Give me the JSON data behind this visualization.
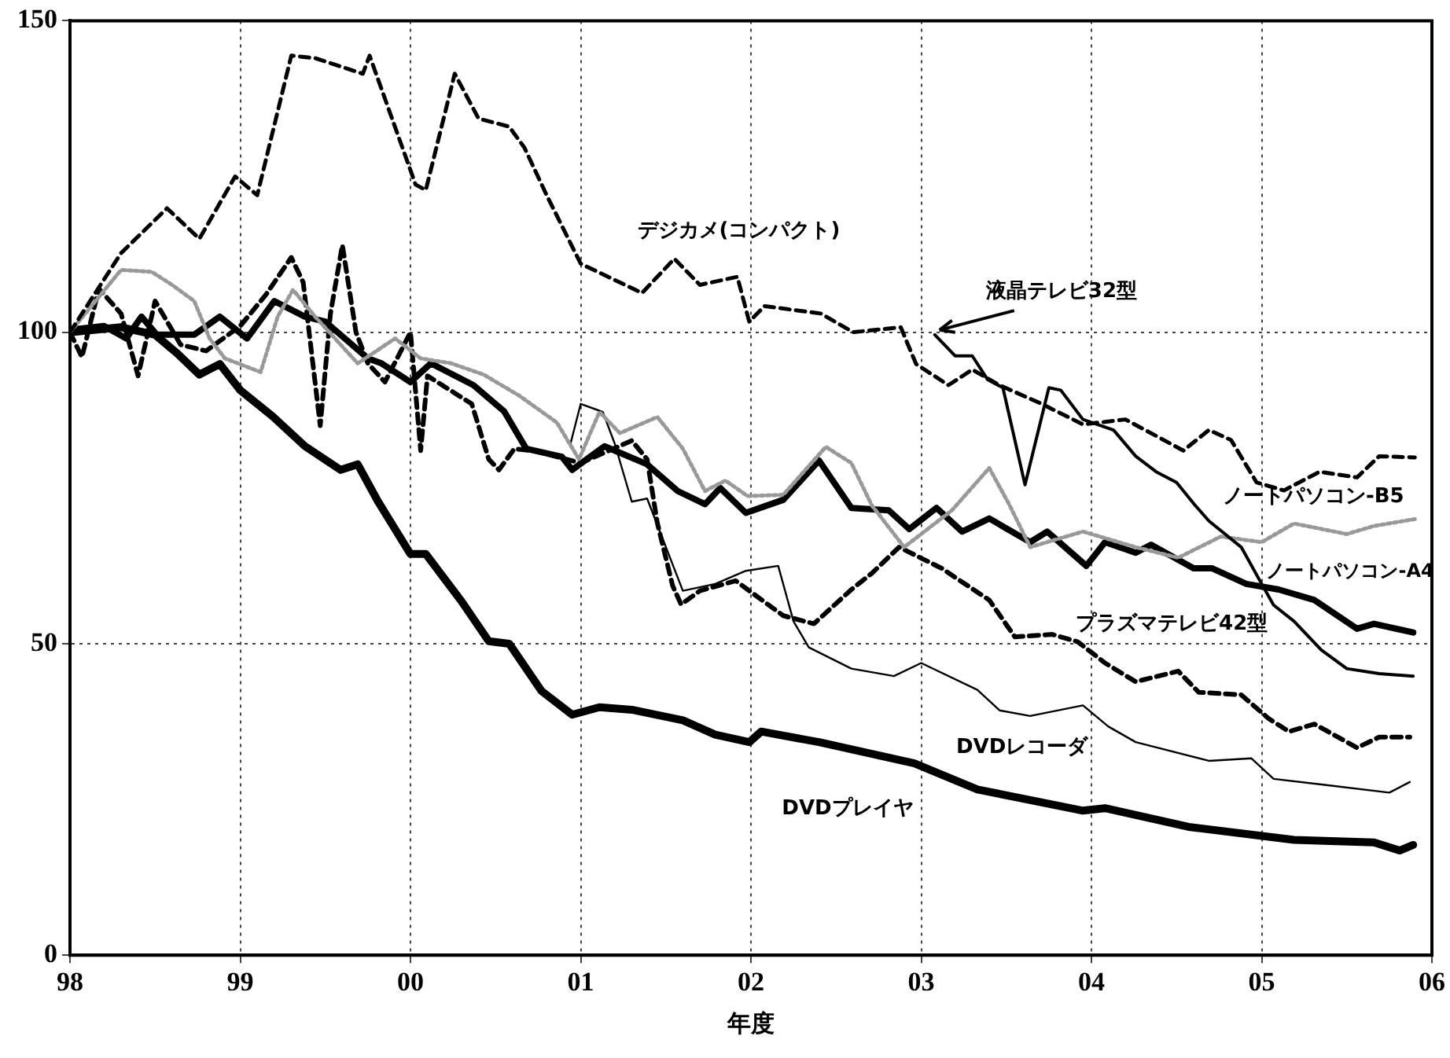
{
  "chart_data": {
    "type": "line",
    "xlabel": "年度",
    "xlim": [
      1998,
      2006
    ],
    "xticks": [
      {
        "value": 1998,
        "label": "98"
      },
      {
        "value": 1999,
        "label": "99"
      },
      {
        "value": 2000,
        "label": "00"
      },
      {
        "value": 2001,
        "label": "01"
      },
      {
        "value": 2002,
        "label": "02"
      },
      {
        "value": 2003,
        "label": "03"
      },
      {
        "value": 2004,
        "label": "04"
      },
      {
        "value": 2005,
        "label": "05"
      },
      {
        "value": 2006,
        "label": "06"
      }
    ],
    "ylim": [
      0,
      150
    ],
    "yticks": [
      0,
      50,
      100,
      150
    ],
    "grid": true,
    "marker": "none",
    "series": [
      {
        "name": "デジカメ(コンパクト)",
        "color": "#000000",
        "line_style": "dashed",
        "x": [
          1998.0,
          1998.3,
          1998.57,
          1998.76,
          1998.97,
          1999.1,
          1999.3,
          1999.44,
          1999.72,
          1999.76,
          2000.03,
          2000.09,
          2000.26,
          2000.4,
          2000.58,
          2000.67,
          2000.8,
          2001.0,
          2001.36,
          2001.55,
          2001.7,
          2001.92,
          2001.99,
          2002.08,
          2002.41,
          2002.6,
          2002.88,
          2002.97,
          2003.16,
          2003.3,
          2003.46,
          2003.7,
          2003.95,
          2004.2,
          2004.54,
          2004.69,
          2004.82,
          2004.97,
          2005.13,
          2005.34,
          2005.56,
          2005.69,
          2005.9
        ],
        "values": [
          100,
          112.7,
          119.9,
          115,
          125,
          122,
          144.4,
          144,
          141.5,
          144.4,
          123.7,
          122.8,
          141.5,
          134.3,
          133,
          129.6,
          122,
          111,
          106.3,
          111.8,
          107.6,
          108.9,
          101.7,
          104.2,
          103,
          100,
          100.8,
          94.9,
          91.5,
          94,
          91.5,
          88.6,
          85.2,
          86,
          81,
          84.3,
          82.7,
          75.9,
          74.6,
          77.6,
          76.7,
          80.1,
          79.9
        ]
      },
      {
        "name": "液晶テレビ32型",
        "color": "#000000",
        "line_style": "solid",
        "x": [
          2003.08,
          2003.2,
          2003.3,
          2003.39,
          2003.48,
          2003.61,
          2003.75,
          2003.82,
          2003.95,
          2004.13,
          2004.26,
          2004.38,
          2004.5,
          2004.6,
          2004.69,
          2004.88,
          2005.0,
          2005.07,
          2005.19,
          2005.35,
          2005.5,
          2005.69,
          2005.89
        ],
        "values": [
          99.6,
          96.2,
          96.2,
          92.4,
          91.1,
          75.5,
          91.1,
          90.7,
          86,
          84.3,
          80.1,
          77.6,
          75.9,
          72.5,
          69.7,
          65.5,
          59.6,
          56.2,
          53.6,
          49,
          46,
          45.2,
          44.8
        ]
      },
      {
        "name": "ノートパソコン-B5",
        "color": "#999999",
        "line_style": "dotted",
        "x": [
          1998.0,
          1998.3,
          1998.48,
          1998.6,
          1998.73,
          1998.82,
          1998.91,
          1999.12,
          1999.22,
          1999.31,
          1999.44,
          1999.69,
          1999.91,
          2000.06,
          2000.24,
          2000.43,
          2000.64,
          2000.86,
          2000.99,
          2001.11,
          2001.23,
          2001.45,
          2001.6,
          2001.73,
          2001.85,
          2001.98,
          2002.19,
          2002.44,
          2002.59,
          2002.71,
          2002.9,
          2003.18,
          2003.4,
          2003.52,
          2003.64,
          2003.95,
          2004.26,
          2004.51,
          2004.76,
          2005.0,
          2005.19,
          2005.5,
          2005.66,
          2005.9
        ],
        "values": [
          100,
          110,
          109.7,
          107.6,
          105,
          99,
          95.8,
          93.6,
          102.5,
          106.8,
          102.5,
          95,
          99,
          95.8,
          95,
          93.2,
          89.8,
          85.5,
          79.6,
          87.2,
          83.8,
          86.4,
          81.3,
          74.5,
          76.2,
          73.7,
          73.9,
          81.6,
          79,
          72.2,
          65.5,
          71.4,
          78.2,
          72.2,
          65.5,
          68,
          65.5,
          63.8,
          67.2,
          66.3,
          69.3,
          67.6,
          68.9,
          70
        ]
      },
      {
        "name": "ノートパソコン-A4",
        "color": "#000000",
        "line_style": "solid",
        "x": [
          1998.0,
          1998.2,
          1998.33,
          1998.42,
          1998.51,
          1998.73,
          1998.88,
          1999.04,
          1999.2,
          1999.38,
          1999.5,
          1999.75,
          1999.83,
          2000.0,
          2000.12,
          2000.37,
          2000.55,
          2000.68,
          2000.89,
          2000.95,
          2001.14,
          2001.39,
          2001.57,
          2001.73,
          2001.82,
          2001.97,
          2002.19,
          2002.4,
          2002.59,
          2002.81,
          2002.93,
          2003.09,
          2003.24,
          2003.4,
          2003.64,
          2003.74,
          2003.97,
          2004.08,
          2004.26,
          2004.35,
          2004.6,
          2004.71,
          2004.91,
          2005.1,
          2005.31,
          2005.56,
          2005.66,
          2005.89
        ],
        "values": [
          100.4,
          101,
          99,
          102.5,
          99.6,
          99.6,
          102.5,
          99,
          105,
          102.5,
          101.7,
          95.8,
          95,
          92,
          95,
          91.5,
          87.3,
          81.3,
          80,
          77.9,
          81.7,
          78.8,
          74.5,
          72.4,
          75,
          71,
          73.1,
          79.4,
          71.8,
          71.4,
          68.4,
          71.8,
          68,
          70.1,
          66.3,
          68,
          62.5,
          66.3,
          64.6,
          65.9,
          62.1,
          62.1,
          59.6,
          58.7,
          57,
          52.4,
          53.2,
          51.8
        ]
      },
      {
        "name": "プラズマテレビ42型",
        "color": "#000000",
        "line_style": "dashed",
        "x": [
          1998.0,
          1998.07,
          1998.17,
          1998.3,
          1998.4,
          1998.5,
          1998.65,
          1998.8,
          1999.0,
          1999.15,
          1999.3,
          1999.37,
          1999.47,
          1999.53,
          1999.6,
          1999.68,
          1999.75,
          1999.85,
          2000.0,
          2000.06,
          2000.1,
          2000.36,
          2000.46,
          2000.52,
          2000.61,
          2000.74,
          2001.0,
          2001.3,
          2001.39,
          2001.45,
          2001.54,
          2001.59,
          2001.7,
          2001.91,
          2002.19,
          2002.37,
          2002.59,
          2002.71,
          2002.87,
          2003.12,
          2003.4,
          2003.55,
          2003.77,
          2003.92,
          2004.08,
          2004.26,
          2004.51,
          2004.63,
          2004.88,
          2005.04,
          2005.16,
          2005.31,
          2005.56,
          2005.69,
          2005.87
        ],
        "values": [
          100,
          96,
          107,
          103,
          93,
          105,
          98,
          97,
          101,
          106,
          112,
          108,
          85,
          103,
          114,
          100,
          95,
          92,
          100,
          81,
          93,
          88.5,
          79.6,
          77.9,
          81.3,
          80.9,
          79,
          82.6,
          79.6,
          69.4,
          59.3,
          56.3,
          58.5,
          60.1,
          54.5,
          53.2,
          58.7,
          61.3,
          65.5,
          62.1,
          57,
          51.1,
          51.5,
          50.3,
          46.9,
          43.9,
          45.6,
          42.2,
          41.8,
          38,
          35.9,
          37.1,
          33.3,
          35,
          35
        ]
      },
      {
        "name": "DVDレコーダ",
        "color": "#000000",
        "line_style": "solid",
        "x": [
          2000.94,
          2001.0,
          2001.13,
          2001.2,
          2001.3,
          2001.39,
          2001.6,
          2001.79,
          2001.97,
          2002.16,
          2002.25,
          2002.34,
          2002.59,
          2002.84,
          2003.0,
          2003.33,
          2003.46,
          2003.64,
          2003.95,
          2004.1,
          2004.26,
          2004.69,
          2004.94,
          2005.07,
          2005.35,
          2005.75,
          2005.87
        ],
        "values": [
          82.1,
          88.5,
          87.2,
          82.1,
          72.8,
          73.3,
          58.5,
          59.6,
          61.7,
          62.5,
          53.6,
          49.4,
          46,
          44.8,
          46.9,
          42.6,
          39.3,
          38.4,
          40.1,
          36.7,
          34.2,
          31.2,
          31.6,
          28.3,
          27.4,
          26.1,
          27.8
        ]
      },
      {
        "name": "DVDプレイヤ",
        "color": "#000000",
        "line_style": "solid",
        "x": [
          1998.0,
          1998.3,
          1998.5,
          1998.63,
          1998.76,
          1998.88,
          1999.0,
          1999.19,
          1999.38,
          1999.59,
          1999.69,
          1999.81,
          2000.0,
          2000.09,
          2000.3,
          2000.46,
          2000.58,
          2000.77,
          2000.95,
          2001.11,
          2001.3,
          2001.6,
          2001.79,
          2001.99,
          2002.06,
          2002.4,
          2002.96,
          2003.33,
          2003.95,
          2004.08,
          2004.57,
          2005.19,
          2005.66,
          2005.81,
          2005.89
        ],
        "values": [
          100,
          100.8,
          99.6,
          96.6,
          93.2,
          94.9,
          90.7,
          86.5,
          81.7,
          77.9,
          78.8,
          72.8,
          64.4,
          64.4,
          56.8,
          50.4,
          50,
          42.4,
          38.6,
          39.8,
          39.4,
          37.7,
          35.4,
          34.2,
          35.9,
          34.2,
          30.8,
          26.6,
          23.2,
          23.6,
          20.6,
          18.5,
          18.1,
          16.8,
          17.7
        ]
      }
    ]
  }
}
